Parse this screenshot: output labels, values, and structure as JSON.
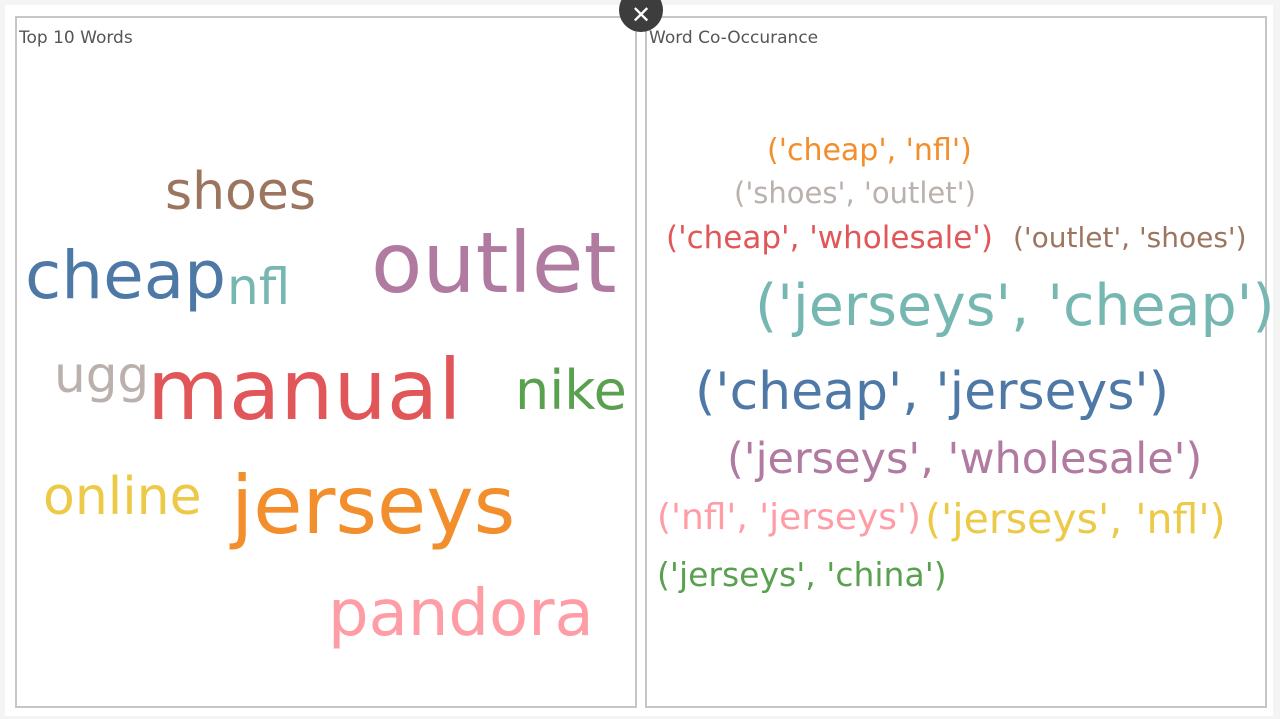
{
  "left_panel": {
    "title": "Top 10 Words",
    "words": [
      {
        "text": "shoes",
        "color": "#9c755f"
      },
      {
        "text": "cheap",
        "color": "#4e79a7"
      },
      {
        "text": "nfl",
        "color": "#76b7b2"
      },
      {
        "text": "outlet",
        "color": "#b07aa1"
      },
      {
        "text": "ugg",
        "color": "#bab0ac"
      },
      {
        "text": "manual",
        "color": "#e15759"
      },
      {
        "text": "nike",
        "color": "#59a14f"
      },
      {
        "text": "online",
        "color": "#edc948"
      },
      {
        "text": "jerseys",
        "color": "#f28e2b"
      },
      {
        "text": "pandora",
        "color": "#ff9da7"
      }
    ]
  },
  "right_panel": {
    "title": "Word Co-Occurance",
    "pairs": [
      {
        "text": "('cheap', 'nfl')",
        "color": "#f28e2b"
      },
      {
        "text": "('shoes', 'outlet')",
        "color": "#bab0ac"
      },
      {
        "text": "('cheap', 'wholesale')",
        "color": "#e15759"
      },
      {
        "text": "('outlet', 'shoes')",
        "color": "#9c755f"
      },
      {
        "text": "('jerseys', 'cheap')",
        "color": "#76b7b2"
      },
      {
        "text": "('cheap', 'jerseys')",
        "color": "#4e79a7"
      },
      {
        "text": "('jerseys', 'wholesale')",
        "color": "#b07aa1"
      },
      {
        "text": "('nfl', 'jerseys')",
        "color": "#ff9da7"
      },
      {
        "text": "('jerseys', 'nfl')",
        "color": "#edc948"
      },
      {
        "text": "('jerseys', 'china')",
        "color": "#59a14f"
      }
    ]
  },
  "close_button": {
    "icon": "close-icon",
    "glyph": "✕"
  }
}
